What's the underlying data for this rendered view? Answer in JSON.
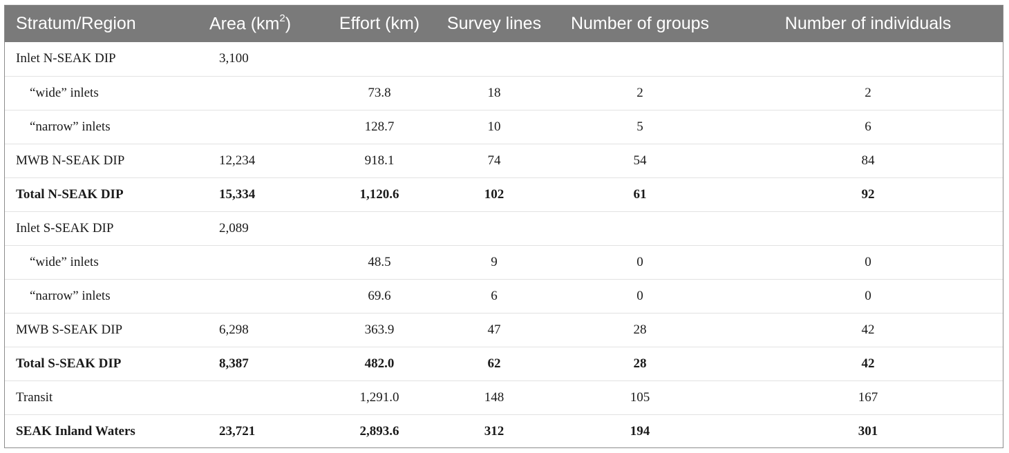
{
  "table": {
    "headers": {
      "stratum": "Stratum/Region",
      "area": "Area (km",
      "area_sup": "2",
      "area_close": ")",
      "effort": "Effort (km)",
      "lines": "Survey lines",
      "groups": "Number of groups",
      "individuals": "Number of individuals"
    },
    "rows": [
      {
        "label": "Inlet N-SEAK DIP",
        "area": "3,100",
        "effort": "",
        "lines": "",
        "groups": "",
        "individuals": ""
      },
      {
        "label": "“wide” inlets",
        "area": "",
        "effort": "73.8",
        "lines": "18",
        "groups": "2",
        "individuals": "2"
      },
      {
        "label": "“narrow” inlets",
        "area": "",
        "effort": "128.7",
        "lines": "10",
        "groups": "5",
        "individuals": "6"
      },
      {
        "label": "MWB N-SEAK DIP",
        "area": "12,234",
        "effort": "918.1",
        "lines": "74",
        "groups": "54",
        "individuals": "84"
      },
      {
        "label": "Total N-SEAK DIP",
        "area": "15,334",
        "effort": "1,120.6",
        "lines": "102",
        "groups": "61",
        "individuals": "92"
      },
      {
        "label": "Inlet S-SEAK DIP",
        "area": "2,089",
        "effort": "",
        "lines": "",
        "groups": "",
        "individuals": ""
      },
      {
        "label": "“wide” inlets",
        "area": "",
        "effort": "48.5",
        "lines": "9",
        "groups": "0",
        "individuals": "0"
      },
      {
        "label": "“narrow” inlets",
        "area": "",
        "effort": "69.6",
        "lines": "6",
        "groups": "0",
        "individuals": "0"
      },
      {
        "label": "MWB S-SEAK DIP",
        "area": "6,298",
        "effort": "363.9",
        "lines": "47",
        "groups": "28",
        "individuals": "42"
      },
      {
        "label": "Total S-SEAK DIP",
        "area": "8,387",
        "effort": "482.0",
        "lines": "62",
        "groups": "28",
        "individuals": "42"
      },
      {
        "label": "Transit",
        "area": "",
        "effort": "1,291.0",
        "lines": "148",
        "groups": "105",
        "individuals": "167"
      },
      {
        "label": "SEAK Inland Waters",
        "area": "23,721",
        "effort": "2,893.6",
        "lines": "312",
        "groups": "194",
        "individuals": "301"
      }
    ]
  }
}
